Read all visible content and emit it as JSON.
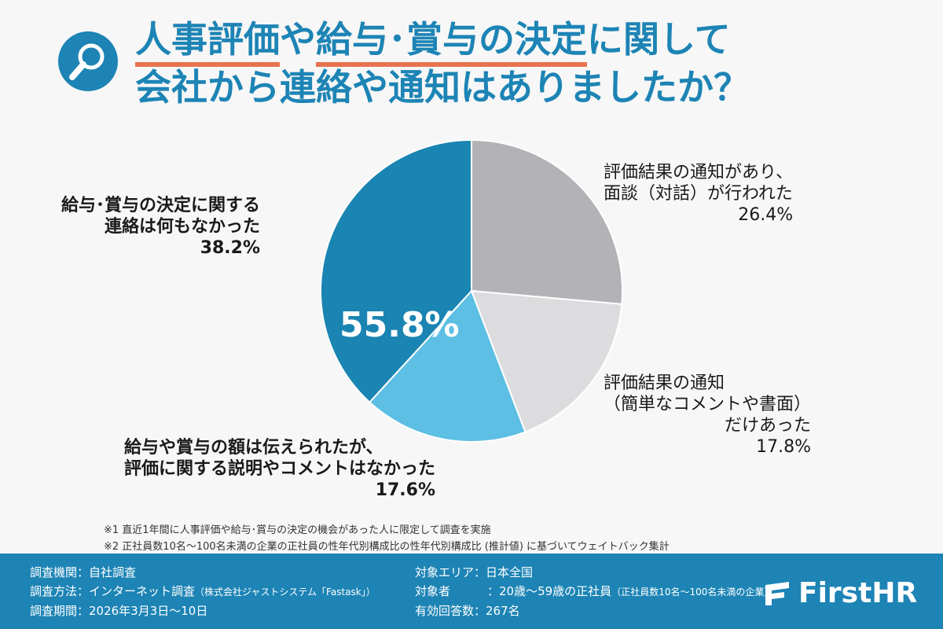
{
  "title": {
    "line1_part1": "人事評価",
    "line1_part2": "や",
    "line1_part3": "給与･賞与の決定",
    "line1_part4": "に関して",
    "line2": "会社から連絡や通知はありましたか？"
  },
  "labels": {
    "a_line1": "評価結果の通知があり、",
    "a_line2": "面談（対話）が行われた",
    "a_pct": "26.4%",
    "b_line1": "評価結果の通知",
    "b_line2": "（簡単なコメントや書面）",
    "b_line3": "だけあった",
    "b_pct": "17.8%",
    "c_line1": "給与や賞与の額は伝えられたが、",
    "c_line2": "評価に関する説明やコメントはなかった",
    "c_pct": "17.6%",
    "d_line1": "給与･賞与の決定に関する",
    "d_line2": "連絡は何もなかった",
    "d_pct": "38.2%",
    "combined_pct": "55.8%"
  },
  "notes": {
    "n1": "※1  直近1年間に人事評価や給与･賞与の決定の機会があった人に限定して調査を実施",
    "n2": "※2  正社員数10名～100名未満の企業の正社員の性年代別構成比の性年代別構成比 (推計値) に基づいてウェイトバック集計"
  },
  "footer": {
    "org": "調査機関：自社調査",
    "method": "調査方法：インターネット調査",
    "method_sub": "（株式会社ジャストシステム「Fastask」）",
    "period": "調査期間：2026年3月3日～10日",
    "area": "対象エリア：日本全国",
    "target_label": "対象者",
    "target_value": "：20歳～59歳の正社員",
    "target_sub": "（正社員数10名～100名未満の企業）",
    "count": "有効回答数：267名",
    "logo_text": "FirstHR"
  },
  "chart_data": {
    "type": "pie",
    "categories": [
      "評価結果の通知があり、面談（対話）が行われた",
      "評価結果の通知（簡単なコメントや書面）だけあった",
      "給与や賞与の額は伝えられたが、評価に関する説明やコメントはなかった",
      "給与･賞与の決定に関する連絡は何もなかった"
    ],
    "values": [
      26.4,
      17.8,
      17.6,
      38.2
    ],
    "colors": [
      "#b3b3b7",
      "#dcdcde",
      "#5cbfe3",
      "#1a84b2"
    ],
    "start": "top",
    "direction": "clockwise",
    "annotation": "55.8%"
  },
  "colors": {
    "accent": "#1d84b5",
    "underline": "#e8724f"
  },
  "icons": {
    "title_icon": "magnifier-icon",
    "logo_icon": "firsthr-logo-icon"
  }
}
